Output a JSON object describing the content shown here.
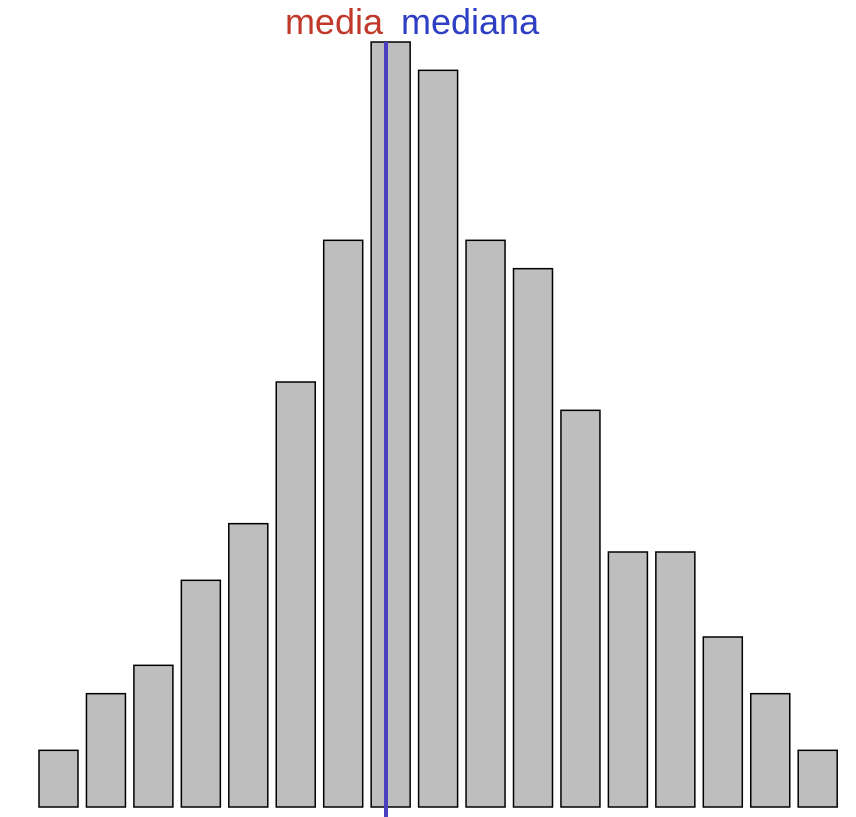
{
  "chart_data": {
    "type": "bar",
    "title": "",
    "xlabel": "",
    "ylabel": "",
    "values": [
      2,
      4,
      5,
      8,
      10,
      15,
      20,
      27,
      26,
      20,
      19,
      14,
      9,
      9,
      6,
      4,
      2
    ],
    "ylim": [
      0,
      27
    ],
    "grid": false,
    "bar_fill": "#bebebe",
    "bar_stroke": "#000000",
    "markers": [
      {
        "label": "media",
        "color": "#c0392b"
      },
      {
        "label": "mediana",
        "color": "#2e3fc4"
      }
    ],
    "marker_line_color": "#4a3fc0"
  }
}
